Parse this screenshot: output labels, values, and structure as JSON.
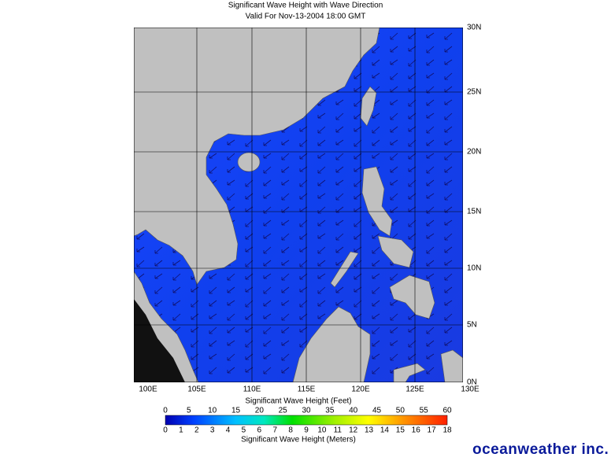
{
  "header": {
    "title": "Significant Wave Height with Wave Direction",
    "subtitle": "Valid For Nov-13-2004 18:00 GMT"
  },
  "map": {
    "lat_labels": [
      "30N",
      "25N",
      "20N",
      "15N",
      "10N",
      "5N",
      "0N"
    ],
    "lon_labels": [
      "100E",
      "105E",
      "110E",
      "115E",
      "120E",
      "125E",
      "130E"
    ]
  },
  "colorbar": {
    "feet_title": "Significant Wave Height (Feet)",
    "feet_labels": [
      "0",
      "5",
      "10",
      "15",
      "20",
      "25",
      "30",
      "35",
      "40",
      "45",
      "50",
      "55",
      "60"
    ],
    "meter_labels": [
      "0",
      "1",
      "2",
      "3",
      "4",
      "5",
      "6",
      "7",
      "8",
      "9",
      "10",
      "11",
      "12",
      "13",
      "14",
      "15",
      "16",
      "17",
      "18"
    ],
    "meter_title": "Significant Wave Height (Meters)"
  },
  "footer": {
    "logo": "oceanweather inc."
  }
}
